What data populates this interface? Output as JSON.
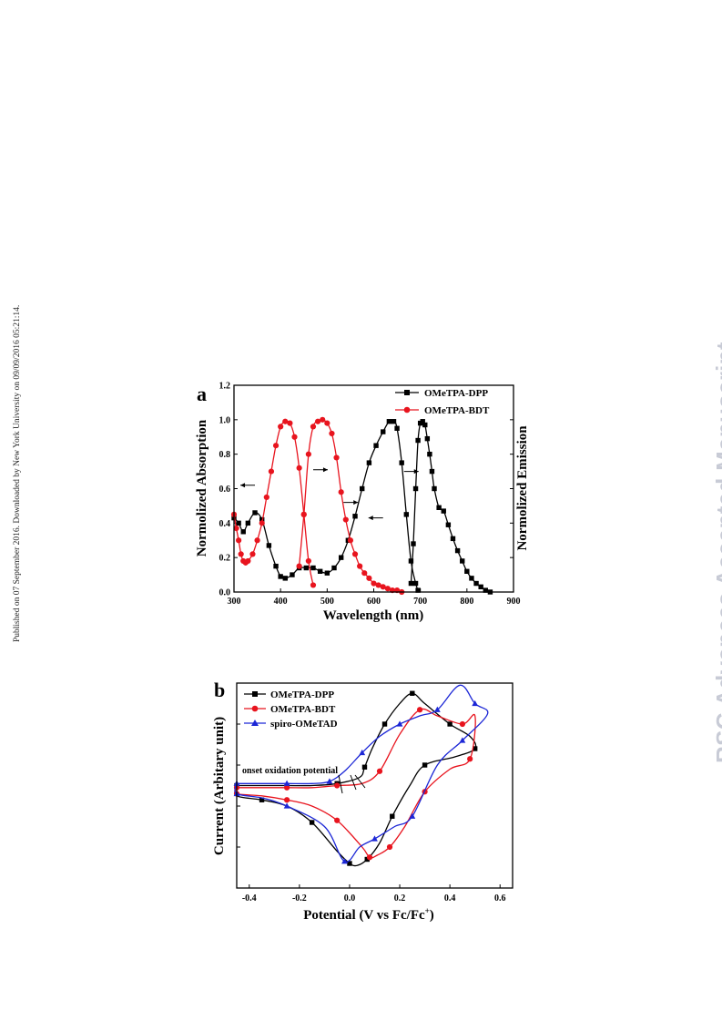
{
  "side_note": "Published on 07 September 2016. Downloaded by New York University on 09/09/2016 05:21:14.",
  "watermark": "RSC Advances Accepted Manuscript",
  "chart_data": [
    {
      "type": "line",
      "panel": "a",
      "xlabel": "Wavelength (nm)",
      "ylabel": "Normolized Absorption",
      "ylabel_right": "Normolized Emission",
      "xlim": [
        300,
        900
      ],
      "ylim": [
        0,
        1.2
      ],
      "xticks": [
        300,
        400,
        500,
        600,
        700,
        800,
        900
      ],
      "yticks": [
        0.0,
        0.2,
        0.4,
        0.6,
        0.8,
        1.0,
        1.2
      ],
      "legend_position": "top-right",
      "grid": false,
      "series": [
        {
          "name": "OMeTPA-DPP",
          "color": "#000000",
          "marker": "square",
          "segments": [
            {
              "kind": "absorption",
              "x": [
                300,
                310,
                320,
                330,
                345,
                360,
                375,
                390,
                400,
                410,
                425,
                440,
                455,
                470,
                485,
                500,
                515,
                530,
                545,
                560,
                575,
                590,
                605,
                620,
                633,
                643,
                650,
                660,
                670,
                680,
                690,
                695
              ],
              "y": [
                0.43,
                0.4,
                0.35,
                0.4,
                0.46,
                0.42,
                0.27,
                0.15,
                0.09,
                0.08,
                0.1,
                0.14,
                0.14,
                0.14,
                0.12,
                0.11,
                0.14,
                0.2,
                0.3,
                0.44,
                0.6,
                0.75,
                0.85,
                0.93,
                0.99,
                0.99,
                0.95,
                0.75,
                0.45,
                0.18,
                0.05,
                0.01
              ]
            },
            {
              "kind": "emission",
              "x": [
                680,
                685,
                690,
                695,
                700,
                705,
                710,
                715,
                720,
                725,
                730,
                740,
                750,
                760,
                770,
                780,
                790,
                800,
                810,
                820,
                830,
                840,
                850
              ],
              "y": [
                0.05,
                0.28,
                0.6,
                0.88,
                0.98,
                0.99,
                0.97,
                0.89,
                0.8,
                0.7,
                0.6,
                0.49,
                0.47,
                0.39,
                0.31,
                0.24,
                0.18,
                0.12,
                0.08,
                0.05,
                0.03,
                0.01,
                0.0
              ]
            }
          ]
        },
        {
          "name": "OMeTPA-BDT",
          "color": "#e8141e",
          "marker": "circle",
          "segments": [
            {
              "kind": "absorption",
              "x": [
                300,
                305,
                310,
                315,
                320,
                325,
                330,
                340,
                350,
                360,
                370,
                380,
                390,
                400,
                410,
                420,
                430,
                440,
                450,
                460,
                470
              ],
              "y": [
                0.45,
                0.37,
                0.3,
                0.22,
                0.18,
                0.17,
                0.18,
                0.22,
                0.3,
                0.4,
                0.55,
                0.7,
                0.85,
                0.96,
                0.99,
                0.98,
                0.9,
                0.72,
                0.45,
                0.18,
                0.04
              ]
            },
            {
              "kind": "emission",
              "x": [
                440,
                450,
                460,
                470,
                480,
                490,
                500,
                510,
                520,
                530,
                540,
                550,
                560,
                570,
                580,
                590,
                600,
                610,
                620,
                630,
                640,
                650,
                660
              ],
              "y": [
                0.15,
                0.45,
                0.8,
                0.96,
                0.99,
                1.0,
                0.98,
                0.92,
                0.78,
                0.58,
                0.42,
                0.3,
                0.22,
                0.15,
                0.11,
                0.08,
                0.05,
                0.04,
                0.03,
                0.02,
                0.01,
                0.01,
                0.0
              ]
            }
          ]
        }
      ]
    },
    {
      "type": "line",
      "panel": "b",
      "xlabel": "Potential (V vs Fc/Fc",
      "xlabel_sup": "+",
      "xlabel_end": ")",
      "ylabel": "Current (Arbitary unit)",
      "xlim": [
        -0.45,
        0.65
      ],
      "ylim": [
        0,
        1
      ],
      "xticks": [
        -0.4,
        -0.2,
        0.0,
        0.2,
        0.4,
        0.6
      ],
      "annotation": "onset oxidation potential",
      "legend_position": "top-left",
      "grid": false,
      "series": [
        {
          "name": "OMeTPA-DPP",
          "color": "#000000",
          "marker": "square",
          "x": [
            -0.45,
            -0.35,
            -0.25,
            -0.15,
            -0.05,
            0.04,
            0.06,
            0.09,
            0.14,
            0.2,
            0.25,
            0.3,
            0.4,
            0.48,
            0.5,
            0.42,
            0.3,
            0.24,
            0.17,
            0.12,
            0.07,
            0.03,
            0.0,
            -0.05,
            -0.15,
            -0.25,
            -0.35,
            -0.45
          ],
          "y": [
            0.5,
            0.5,
            0.5,
            0.5,
            0.51,
            0.54,
            0.59,
            0.68,
            0.8,
            0.9,
            0.95,
            0.9,
            0.8,
            0.74,
            0.68,
            0.64,
            0.6,
            0.5,
            0.35,
            0.22,
            0.14,
            0.11,
            0.12,
            0.18,
            0.32,
            0.4,
            0.43,
            0.45
          ]
        },
        {
          "name": "OMeTPA-BDT",
          "color": "#e8141e",
          "marker": "circle",
          "x": [
            -0.45,
            -0.35,
            -0.25,
            -0.15,
            -0.05,
            0.05,
            0.12,
            0.2,
            0.28,
            0.35,
            0.45,
            0.5,
            0.48,
            0.4,
            0.3,
            0.22,
            0.16,
            0.11,
            0.08,
            0.05,
            -0.05,
            -0.15,
            -0.25,
            -0.35,
            -0.45
          ],
          "y": [
            0.49,
            0.49,
            0.49,
            0.49,
            0.5,
            0.51,
            0.57,
            0.75,
            0.87,
            0.84,
            0.8,
            0.84,
            0.63,
            0.58,
            0.47,
            0.3,
            0.2,
            0.16,
            0.15,
            0.2,
            0.33,
            0.4,
            0.43,
            0.45,
            0.46
          ]
        },
        {
          "name": "spiro-OMeTAD",
          "color": "#1c27d6",
          "marker": "triangle",
          "x": [
            -0.45,
            -0.35,
            -0.25,
            -0.15,
            -0.08,
            -0.02,
            0.05,
            0.12,
            0.2,
            0.28,
            0.35,
            0.44,
            0.5,
            0.55,
            0.45,
            0.35,
            0.25,
            0.18,
            0.1,
            0.04,
            -0.02,
            -0.1,
            -0.25,
            -0.35,
            -0.45
          ],
          "y": [
            0.51,
            0.51,
            0.51,
            0.51,
            0.52,
            0.57,
            0.66,
            0.74,
            0.8,
            0.84,
            0.87,
            0.99,
            0.9,
            0.85,
            0.72,
            0.6,
            0.35,
            0.3,
            0.24,
            0.2,
            0.13,
            0.3,
            0.4,
            0.44,
            0.46
          ]
        }
      ]
    }
  ]
}
